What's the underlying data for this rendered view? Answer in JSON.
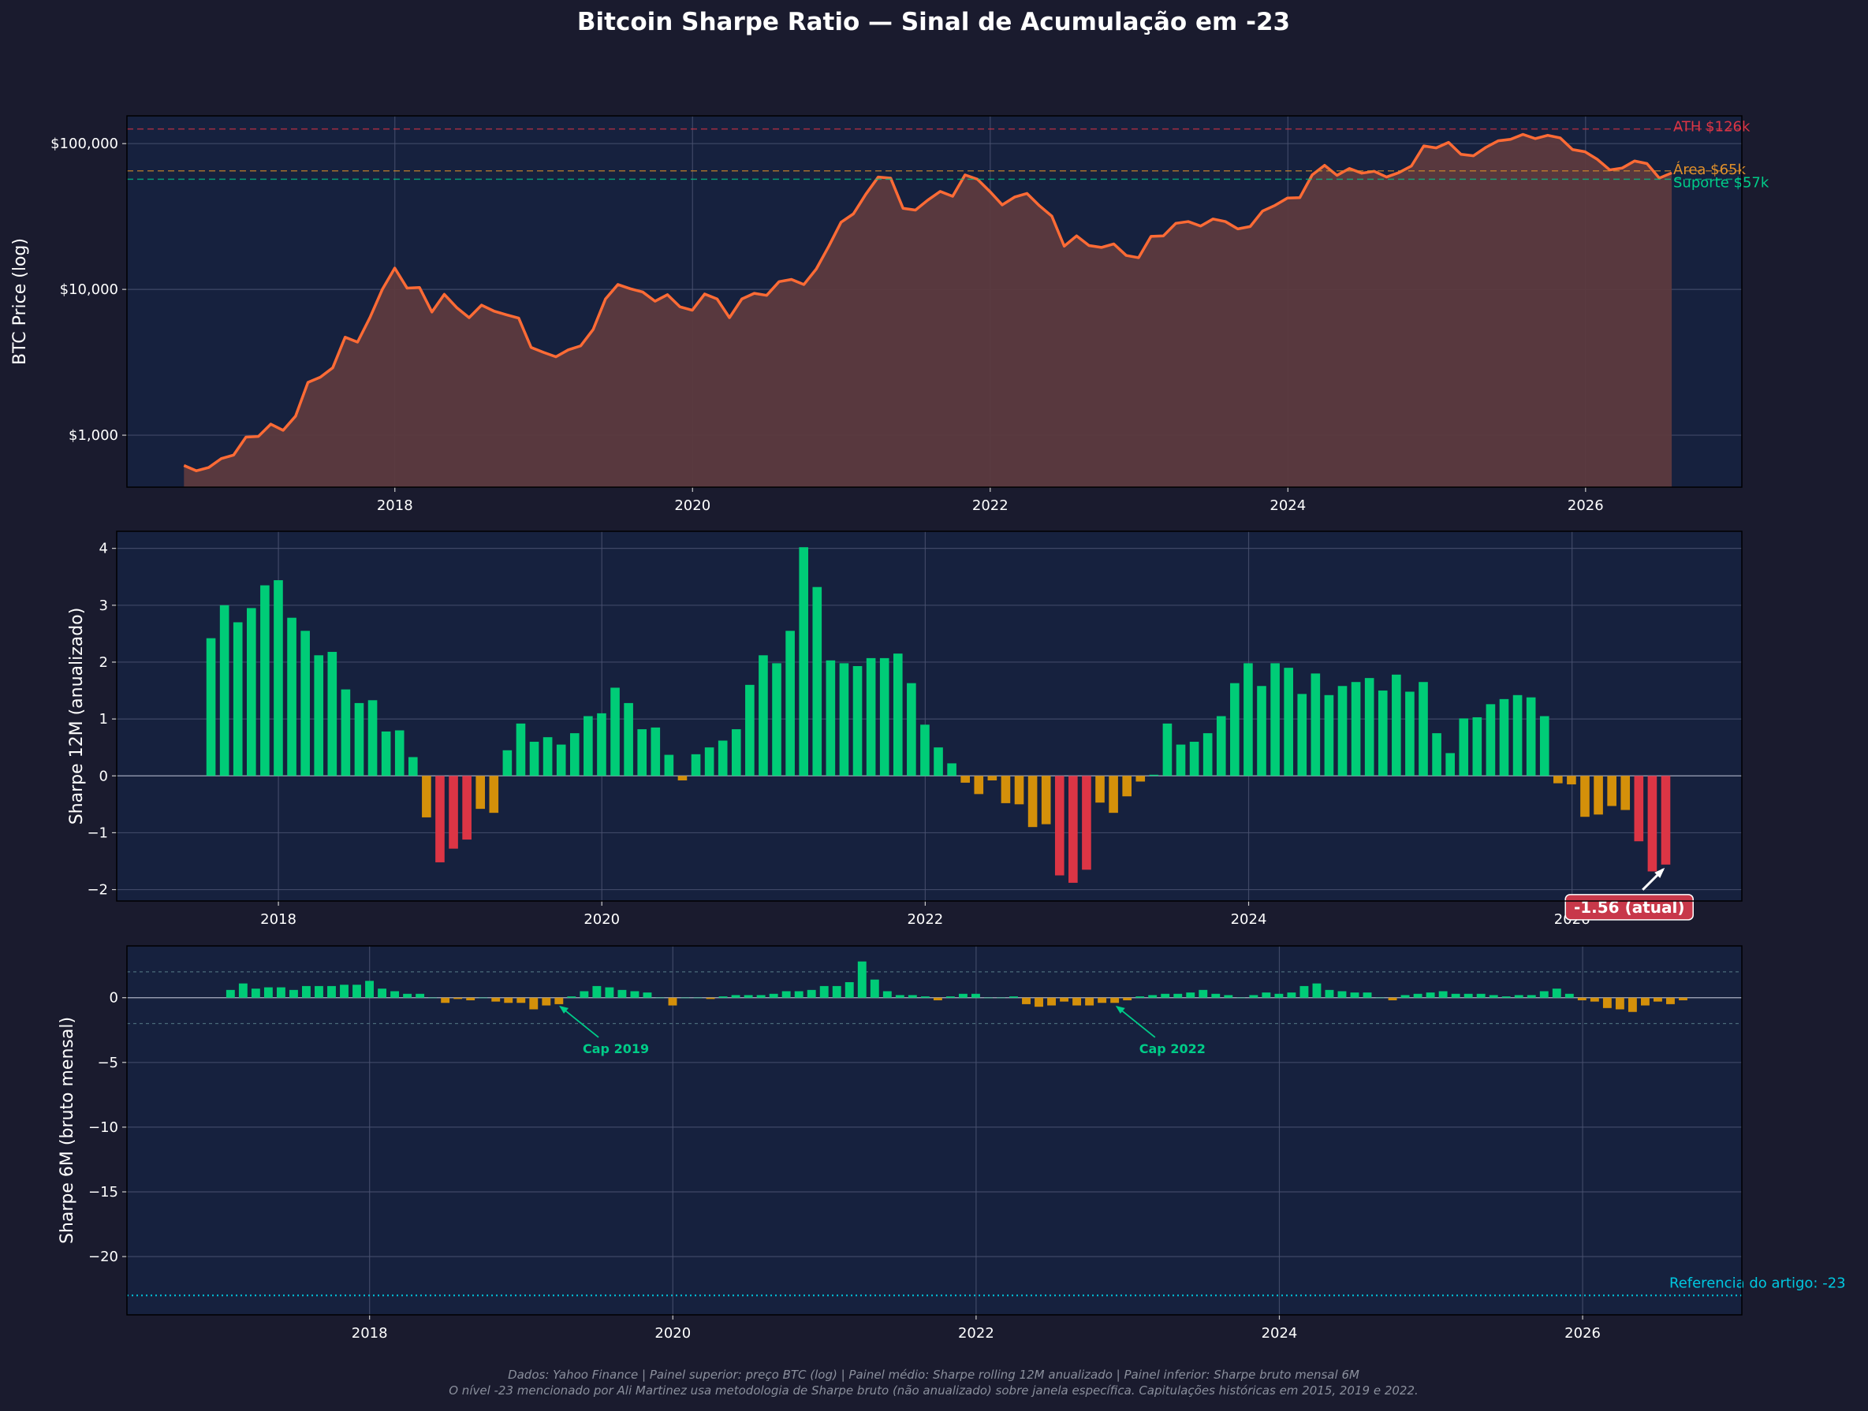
{
  "title": "Bitcoin Sharpe Ratio — Sinal de Acumulação em -23",
  "footer": {
    "line1": "Dados: Yahoo Finance | Painel superior: preço BTC (log) | Painel médio: Sharpe rolling 12M anualizado | Painel inferior: Sharpe bruto mensal 6M",
    "line2": "O nível -23 mencionado por Ali Martinez usa metodologia de Sharpe bruto (não anualizado) sobre janela específica. Capitulações históricas em 2015, 2019 e 2022."
  },
  "colors": {
    "background": "#1a1b2e",
    "panel": "#16213e",
    "price_line": "#ff6b35",
    "price_fill": "#5c3a3e",
    "green": "#00cc77",
    "amber": "#d4900a",
    "red": "#dc3545",
    "cyan": "#00c8e0",
    "ath": "#dc3545",
    "area": "#ff9a2e",
    "support": "#00cc88"
  },
  "chart_data": [
    {
      "type": "line",
      "ylabel": "BTC Price (log)",
      "yscale": "log",
      "xlim": [
        2016.2,
        2027.05
      ],
      "ylim": [
        440,
        155000
      ],
      "xticks": [
        2018,
        2020,
        2022,
        2024,
        2026
      ],
      "xtick_labels": [
        "2018",
        "2020",
        "2022",
        "2024",
        "2026"
      ],
      "yticks": [
        1000,
        10000,
        100000
      ],
      "ytick_labels": [
        "$1,000",
        "$10,000",
        "$100,000"
      ],
      "x_start": 2016.583,
      "x_step": 0.0833,
      "values": [
        620,
        570,
        600,
        690,
        730,
        970,
        980,
        1190,
        1080,
        1350,
        2300,
        2500,
        2900,
        4700,
        4350,
        6400,
        10000,
        14000,
        10200,
        10300,
        7000,
        9250,
        7500,
        6400,
        7800,
        7100,
        6700,
        6350,
        4000,
        3700,
        3450,
        3850,
        4100,
        5300,
        8600,
        10800,
        10100,
        9600,
        8300,
        9200,
        7600,
        7200,
        9300,
        8600,
        6400,
        8600,
        9400,
        9100,
        11300,
        11700,
        10800,
        13800,
        19700,
        28900,
        33000,
        45000,
        59000,
        58000,
        36000,
        35000,
        41000,
        47000,
        43500,
        61000,
        57000,
        47000,
        38000,
        43000,
        45500,
        37500,
        31800,
        19800,
        23300,
        20000,
        19400,
        20500,
        17100,
        16500,
        23100,
        23300,
        28400,
        29200,
        27200,
        30400,
        29200,
        26000,
        27000,
        34500,
        37700,
        42300,
        42600,
        61000,
        71000,
        60600,
        67500,
        62700,
        64600,
        59000,
        63300,
        70200,
        96400,
        93500,
        102000,
        84500,
        82500,
        94200,
        104500,
        107000,
        115700,
        108200,
        114000,
        109500,
        91000,
        88000,
        78000,
        66000,
        68000,
        76000,
        73000,
        58000,
        63000
      ],
      "reference_lines": [
        {
          "value": 126000,
          "label": "ATH $126k",
          "color": "#dc3545"
        },
        {
          "value": 65000,
          "label": "Área $65k",
          "color": "#e0902a"
        },
        {
          "value": 57000,
          "label": "Suporte $57k",
          "color": "#00cc88"
        }
      ]
    },
    {
      "type": "bar",
      "ylabel": "Sharpe 12M (anualizado)",
      "xlim": [
        2017.0,
        2027.05
      ],
      "ylim": [
        -2.2,
        4.3
      ],
      "xticks": [
        2018,
        2020,
        2022,
        2024,
        2026
      ],
      "xtick_labels": [
        "2018",
        "2020",
        "2022",
        "2024",
        "2026"
      ],
      "yticks": [
        -2,
        -1,
        0,
        1,
        2,
        3,
        4
      ],
      "ytick_labels": [
        "−2",
        "−1",
        "0",
        "1",
        "2",
        "3",
        "4"
      ],
      "x_start": 2017.583,
      "x_step": 0.0833,
      "values": [
        2.42,
        3.0,
        2.7,
        2.95,
        3.35,
        3.44,
        2.78,
        2.55,
        2.12,
        2.18,
        1.52,
        1.28,
        1.33,
        0.78,
        0.8,
        0.33,
        -0.73,
        -1.52,
        -1.28,
        -1.12,
        -0.58,
        -0.65,
        0.45,
        0.92,
        0.6,
        0.68,
        0.55,
        0.75,
        1.05,
        1.1,
        1.55,
        1.28,
        0.82,
        0.85,
        0.37,
        -0.08,
        0.38,
        0.5,
        0.62,
        0.82,
        1.6,
        2.12,
        1.98,
        2.55,
        4.02,
        3.32,
        2.03,
        1.98,
        1.93,
        2.07,
        2.07,
        2.15,
        1.63,
        0.9,
        0.5,
        0.22,
        -0.12,
        -0.32,
        -0.08,
        -0.48,
        -0.5,
        -0.9,
        -0.85,
        -1.75,
        -1.88,
        -1.65,
        -0.47,
        -0.65,
        -0.36,
        -0.1,
        0.02,
        0.92,
        0.55,
        0.6,
        0.75,
        1.05,
        1.63,
        1.98,
        1.58,
        1.98,
        1.9,
        1.44,
        1.8,
        1.42,
        1.58,
        1.65,
        1.72,
        1.5,
        1.78,
        1.48,
        1.65,
        0.75,
        0.4,
        1.01,
        1.03,
        1.26,
        1.35,
        1.42,
        1.38,
        1.05,
        -0.13,
        -0.15,
        -0.72,
        -0.68,
        -0.53,
        -0.6,
        -1.15,
        -1.68,
        -1.56
      ],
      "annotation": {
        "text": "-1.56 (atual)",
        "x": 2026.583,
        "y": -1.56
      }
    },
    {
      "type": "bar",
      "ylabel": "Sharpe 6M (bruto mensal)",
      "xlim": [
        2016.4,
        2027.05
      ],
      "ylim": [
        -24.5,
        4.0
      ],
      "xticks": [
        2018,
        2020,
        2022,
        2024,
        2026
      ],
      "xtick_labels": [
        "2018",
        "2020",
        "2022",
        "2024",
        "2026"
      ],
      "yticks": [
        -20,
        -15,
        -10,
        -5,
        0
      ],
      "ytick_labels": [
        "−20",
        "−15",
        "−10",
        "−5",
        "0"
      ],
      "x_start": 2017.083,
      "x_step": 0.0833,
      "values": [
        0.6,
        1.1,
        0.7,
        0.8,
        0.8,
        0.6,
        0.9,
        0.9,
        0.9,
        1.0,
        1.0,
        1.3,
        0.7,
        0.5,
        0.3,
        0.3,
        0.0,
        -0.4,
        -0.1,
        -0.2,
        0.0,
        -0.3,
        -0.4,
        -0.4,
        -0.9,
        -0.6,
        -0.5,
        0.1,
        0.5,
        0.9,
        0.8,
        0.6,
        0.5,
        0.4,
        0.0,
        -0.6,
        0.0,
        0.0,
        -0.1,
        0.1,
        0.2,
        0.2,
        0.2,
        0.3,
        0.5,
        0.5,
        0.6,
        0.9,
        0.9,
        1.2,
        2.8,
        1.4,
        0.5,
        0.2,
        0.2,
        0.1,
        -0.2,
        0.1,
        0.3,
        0.3,
        0.0,
        0.0,
        0.1,
        -0.5,
        -0.7,
        -0.6,
        -0.3,
        -0.6,
        -0.6,
        -0.4,
        -0.4,
        -0.2,
        0.1,
        0.2,
        0.3,
        0.3,
        0.4,
        0.6,
        0.3,
        0.2,
        0.0,
        0.2,
        0.4,
        0.3,
        0.4,
        0.9,
        1.1,
        0.6,
        0.5,
        0.4,
        0.4,
        0.0,
        -0.2,
        0.2,
        0.3,
        0.4,
        0.5,
        0.3,
        0.3,
        0.3,
        0.2,
        0.1,
        0.2,
        0.2,
        0.5,
        0.7,
        0.3,
        -0.2,
        -0.3,
        -0.8,
        -0.9,
        -1.1,
        -0.6,
        -0.3,
        -0.5,
        -0.2
      ],
      "bands": [
        2.0,
        -2.0
      ],
      "reference_line": {
        "value": -23,
        "label": "Referencia do artigo: -23"
      },
      "annotations": [
        {
          "text": "Cap 2019",
          "x": 2019.25,
          "y": -0.5
        },
        {
          "text": "Cap 2022",
          "x": 2022.92,
          "y": -0.5
        }
      ]
    }
  ]
}
